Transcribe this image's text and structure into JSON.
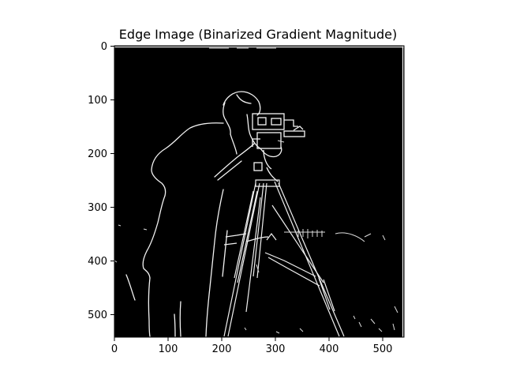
{
  "figure": {
    "title": "Edge Image (Binarized Gradient Magnitude)",
    "image_description_ref": "camera-operator-edge-map",
    "colors": {
      "background": "#000000",
      "edge": "#ffffff",
      "axes": "#000000"
    }
  },
  "axes": {
    "x_ticks": [
      "0",
      "100",
      "200",
      "300",
      "400",
      "500"
    ],
    "y_ticks": [
      "0",
      "100",
      "200",
      "300",
      "400",
      "500"
    ]
  }
}
